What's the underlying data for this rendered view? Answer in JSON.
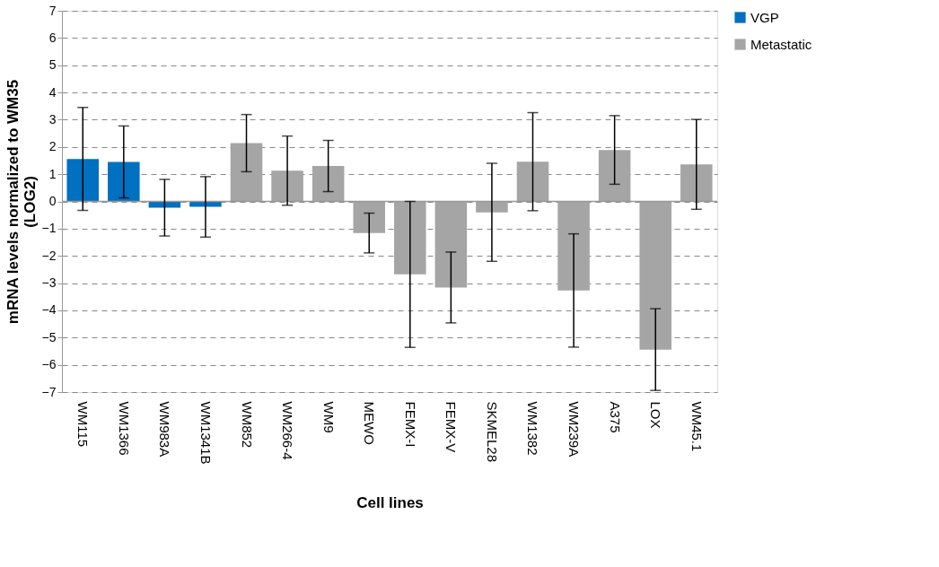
{
  "chart_data": {
    "type": "bar",
    "xlabel": "Cell lines",
    "ylabel": "mRNA levels normalized to WM35 (LOG2)",
    "categories": [
      "WM115",
      "WM1366",
      "WM983A",
      "WM1341B",
      "WM852",
      "WM266-4",
      "WM9",
      "MEWO",
      "FEMX-I",
      "FEMX-V",
      "SKMEL28",
      "WM1382",
      "WM239A",
      "A375",
      "LOX",
      "WM45.1"
    ],
    "series": [
      {
        "name": "VGP",
        "color": "#0070c0",
        "values": [
          1.56,
          1.45,
          -0.23,
          -0.2,
          null,
          null,
          null,
          null,
          null,
          null,
          null,
          null,
          null,
          null,
          null,
          null
        ],
        "errors": [
          1.89,
          1.32,
          1.04,
          1.11,
          null,
          null,
          null,
          null,
          null,
          null,
          null,
          null,
          null,
          null,
          null,
          null
        ]
      },
      {
        "name": "Metastatic",
        "color": "#a5a5a5",
        "values": [
          null,
          null,
          null,
          null,
          2.14,
          1.13,
          1.3,
          -1.16,
          -2.68,
          -3.16,
          -0.4,
          1.46,
          -3.27,
          1.89,
          -5.44,
          1.36
        ],
        "errors": [
          null,
          null,
          null,
          null,
          1.05,
          1.27,
          0.94,
          0.73,
          2.68,
          1.3,
          1.8,
          1.8,
          2.08,
          1.26,
          1.5,
          1.65
        ]
      }
    ],
    "ylim": [
      -7,
      7
    ],
    "yticks": [
      -7,
      -6,
      -5,
      -4,
      -3,
      -2,
      -1,
      0,
      1,
      2,
      3,
      4,
      5,
      6,
      7
    ],
    "grid": "y",
    "legend": "right"
  }
}
